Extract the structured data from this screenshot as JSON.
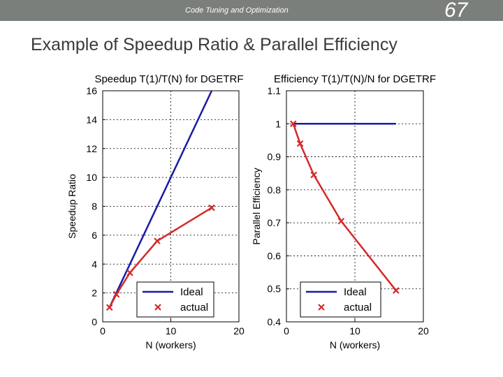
{
  "header": {
    "section_title": "Code Tuning and Optimization",
    "page_number": "67"
  },
  "slide": {
    "title": "Example of Speedup Ratio & Parallel Efficiency"
  },
  "chart_data": [
    {
      "type": "line",
      "title": "Speedup T(1)/T(N) for DGETRF",
      "xlabel": "N (workers)",
      "ylabel": "Speedup Ratio",
      "xlim": [
        0,
        20
      ],
      "ylim": [
        0,
        16
      ],
      "xticks": [
        0,
        10,
        20
      ],
      "yticks": [
        0,
        2,
        4,
        6,
        8,
        10,
        12,
        14,
        16
      ],
      "grid": true,
      "legend": "bottom-right",
      "series": [
        {
          "name": "Ideal",
          "color": "#1a1aa8",
          "marker": "none",
          "x": [
            1,
            16
          ],
          "y": [
            1,
            16
          ]
        },
        {
          "name": "actual",
          "color": "#d42a2a",
          "marker": "x",
          "x": [
            1,
            2,
            4,
            8,
            16
          ],
          "y": [
            1.0,
            1.9,
            3.4,
            5.6,
            7.9
          ]
        }
      ]
    },
    {
      "type": "line",
      "title": "Efficiency T(1)/T(N)/N for DGETRF",
      "xlabel": "N (workers)",
      "ylabel": "Parallel Efficiency",
      "xlim": [
        0,
        20
      ],
      "ylim": [
        0.4,
        1.1
      ],
      "xticks": [
        0,
        10,
        20
      ],
      "yticks": [
        0.4,
        0.5,
        0.6,
        0.7,
        0.8,
        0.9,
        1,
        1.1
      ],
      "grid": true,
      "legend": "bottom-right",
      "series": [
        {
          "name": "Ideal",
          "color": "#1a1aa8",
          "marker": "none",
          "x": [
            1,
            16
          ],
          "y": [
            1,
            1
          ]
        },
        {
          "name": "actual",
          "color": "#d42a2a",
          "marker": "x",
          "x": [
            1,
            2,
            4,
            8,
            16
          ],
          "y": [
            1.0,
            0.94,
            0.845,
            0.705,
            0.495
          ]
        }
      ]
    }
  ]
}
